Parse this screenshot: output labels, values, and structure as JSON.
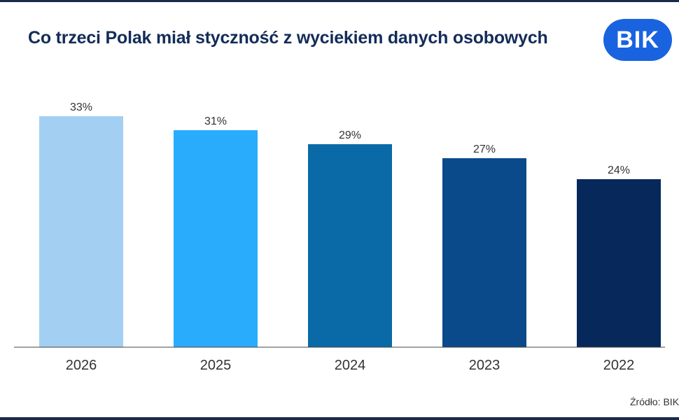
{
  "title": "Co trzeci Polak miał styczność z wyciekiem danych osobowych",
  "logo": {
    "text": "BIK",
    "color": "#1a63e0"
  },
  "source": "Źródło: BIK",
  "chart_data": {
    "type": "bar",
    "title": "Co trzeci Polak miał styczność z wyciekiem danych osobowych",
    "categories": [
      "2026",
      "2025",
      "2024",
      "2023",
      "2022"
    ],
    "values": [
      33,
      31,
      29,
      27,
      24
    ],
    "data_labels": [
      "33%",
      "31%",
      "29%",
      "27%",
      "24%"
    ],
    "colors": [
      "#a3d0f2",
      "#2aacfd",
      "#0a6aa7",
      "#0b4a8a",
      "#06285a"
    ],
    "unit": "%",
    "ylim": [
      0,
      33
    ],
    "grid": false,
    "legend": "none"
  }
}
